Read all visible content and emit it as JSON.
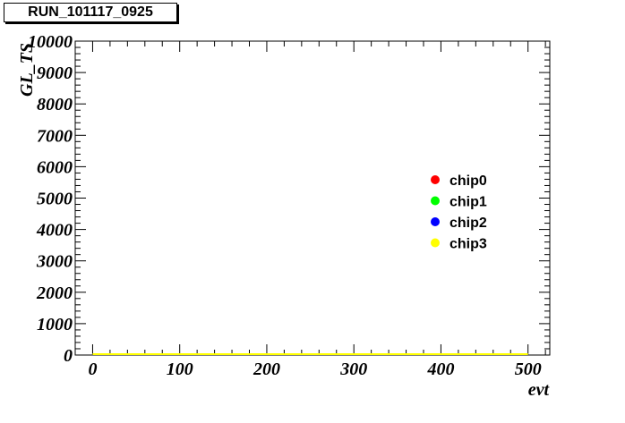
{
  "chart_data": {
    "type": "scatter",
    "title": "RUN_101117_0925",
    "xlabel": "evt",
    "ylabel": "GL_TS",
    "xlim": [
      -20,
      525
    ],
    "ylim": [
      0,
      10000
    ],
    "x_ticks": [
      0,
      100,
      200,
      300,
      400,
      500
    ],
    "y_ticks": [
      0,
      1000,
      2000,
      3000,
      4000,
      5000,
      6000,
      7000,
      8000,
      9000,
      10000
    ],
    "grid": false,
    "legend_position": "right",
    "series": [
      {
        "name": "chip0",
        "color": "#ff0000",
        "x_range": [
          0,
          500
        ],
        "y": 0
      },
      {
        "name": "chip1",
        "color": "#00ff00",
        "x_range": [
          0,
          500
        ],
        "y": 0
      },
      {
        "name": "chip2",
        "color": "#0000ff",
        "x_range": [
          0,
          500
        ],
        "y": 0
      },
      {
        "name": "chip3",
        "color": "#ffff00",
        "x_range": [
          0,
          500
        ],
        "y": 0
      }
    ]
  }
}
